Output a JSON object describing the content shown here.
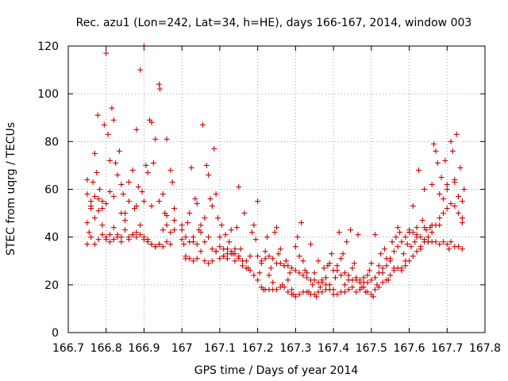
{
  "chart_data": {
    "type": "scatter",
    "title": "Rec. azu1 (Lon=242, Lat=34, h=HE), days 166-167, 2014, window 003",
    "xlabel": "GPS time / Days of year 2014",
    "ylabel": "STEC from uqrg / TECUs",
    "xlim": [
      166.7,
      167.8
    ],
    "ylim": [
      0,
      120
    ],
    "xticks": [
      "166.7",
      "166.8",
      "166.9",
      "167",
      "167.1",
      "167.2",
      "167.3",
      "167.4",
      "167.5",
      "167.6",
      "167.7",
      "167.8"
    ],
    "yticks": [
      "0",
      "20",
      "40",
      "60",
      "80",
      "100",
      "120"
    ],
    "grid": true,
    "marker": "plus",
    "color": "#cc0000",
    "points": [
      [
        166.75,
        37
      ],
      [
        166.755,
        42
      ],
      [
        166.76,
        52
      ],
      [
        166.765,
        63
      ],
      [
        166.77,
        75
      ],
      [
        166.775,
        67
      ],
      [
        166.778,
        91
      ],
      [
        166.783,
        60
      ],
      [
        166.79,
        55
      ],
      [
        166.795,
        87
      ],
      [
        166.8,
        117
      ],
      [
        166.805,
        83
      ],
      [
        166.81,
        72
      ],
      [
        166.815,
        94
      ],
      [
        166.82,
        89
      ],
      [
        166.825,
        71
      ],
      [
        166.83,
        66
      ],
      [
        166.835,
        76
      ],
      [
        166.84,
        62
      ],
      [
        166.845,
        58
      ],
      [
        166.85,
        50
      ],
      [
        166.86,
        63
      ],
      [
        166.87,
        68
      ],
      [
        166.875,
        52
      ],
      [
        166.88,
        85
      ],
      [
        166.885,
        61
      ],
      [
        166.89,
        110
      ],
      [
        166.895,
        59
      ],
      [
        166.9,
        120
      ],
      [
        166.905,
        70
      ],
      [
        166.91,
        67
      ],
      [
        166.915,
        89
      ],
      [
        166.92,
        88
      ],
      [
        166.925,
        71
      ],
      [
        166.93,
        81
      ],
      [
        166.94,
        104
      ],
      [
        166.942,
        102
      ],
      [
        166.95,
        58
      ],
      [
        166.955,
        50
      ],
      [
        166.96,
        81
      ],
      [
        166.97,
        68
      ],
      [
        166.975,
        63
      ],
      [
        166.98,
        52
      ],
      [
        166.75,
        58
      ],
      [
        166.76,
        55
      ],
      [
        166.77,
        48
      ],
      [
        166.78,
        51
      ],
      [
        166.79,
        45
      ],
      [
        166.8,
        40
      ],
      [
        166.81,
        38
      ],
      [
        166.82,
        44
      ],
      [
        166.83,
        40
      ],
      [
        166.84,
        38
      ],
      [
        166.85,
        43
      ],
      [
        166.86,
        39
      ],
      [
        166.87,
        41
      ],
      [
        166.88,
        40
      ],
      [
        166.89,
        45
      ],
      [
        166.9,
        39
      ],
      [
        166.91,
        38
      ],
      [
        166.92,
        37
      ],
      [
        166.93,
        36
      ],
      [
        166.94,
        37
      ],
      [
        166.95,
        43
      ],
      [
        166.96,
        45
      ],
      [
        166.97,
        42
      ],
      [
        166.98,
        43
      ],
      [
        166.75,
        46
      ],
      [
        166.76,
        40
      ],
      [
        166.77,
        37
      ],
      [
        166.78,
        39
      ],
      [
        166.79,
        41
      ],
      [
        166.8,
        39
      ],
      [
        166.81,
        41
      ],
      [
        166.82,
        39
      ],
      [
        166.83,
        41
      ],
      [
        166.84,
        40
      ],
      [
        166.85,
        47
      ],
      [
        166.86,
        40
      ],
      [
        166.87,
        41
      ],
      [
        166.88,
        42
      ],
      [
        166.89,
        41
      ],
      [
        166.9,
        40
      ],
      [
        166.91,
        39
      ],
      [
        166.92,
        37
      ],
      [
        166.93,
        36
      ],
      [
        166.94,
        37
      ],
      [
        166.95,
        36
      ],
      [
        166.96,
        38
      ],
      [
        166.97,
        37
      ],
      [
        166.75,
        64
      ],
      [
        166.76,
        53
      ],
      [
        166.77,
        57
      ],
      [
        166.78,
        56
      ],
      [
        166.79,
        52
      ],
      [
        166.8,
        54
      ],
      [
        166.81,
        59
      ],
      [
        166.82,
        57
      ],
      [
        166.84,
        50
      ],
      [
        166.86,
        55
      ],
      [
        166.88,
        53
      ],
      [
        166.9,
        55
      ],
      [
        166.92,
        53
      ],
      [
        166.94,
        55
      ],
      [
        166.96,
        49
      ],
      [
        166.98,
        47
      ],
      [
        167.0,
        43
      ],
      [
        167.005,
        37
      ],
      [
        167.01,
        32
      ],
      [
        167.015,
        46
      ],
      [
        167.02,
        50
      ],
      [
        167.025,
        69
      ],
      [
        167.03,
        40
      ],
      [
        167.035,
        56
      ],
      [
        167.04,
        54
      ],
      [
        167.045,
        43
      ],
      [
        167.05,
        45
      ],
      [
        167.055,
        87
      ],
      [
        167.06,
        48
      ],
      [
        167.065,
        70
      ],
      [
        167.07,
        66
      ],
      [
        167.075,
        56
      ],
      [
        167.08,
        53
      ],
      [
        167.085,
        77
      ],
      [
        167.09,
        58
      ],
      [
        167.095,
        48
      ],
      [
        167.1,
        40
      ],
      [
        167.105,
        45
      ],
      [
        167.11,
        32
      ],
      [
        167.115,
        41
      ],
      [
        167.12,
        35
      ],
      [
        167.125,
        38
      ],
      [
        167.13,
        43
      ],
      [
        167.135,
        33
      ],
      [
        167.14,
        33
      ],
      [
        167.145,
        44
      ],
      [
        167.15,
        61
      ],
      [
        167.155,
        35
      ],
      [
        167.16,
        30
      ],
      [
        167.165,
        50
      ],
      [
        167.17,
        30
      ],
      [
        167.175,
        27
      ],
      [
        167.18,
        32
      ],
      [
        167.185,
        42
      ],
      [
        167.19,
        45
      ],
      [
        167.195,
        39
      ],
      [
        167.0,
        39
      ],
      [
        167.01,
        31
      ],
      [
        167.02,
        31
      ],
      [
        167.03,
        30
      ],
      [
        167.04,
        31
      ],
      [
        167.05,
        34
      ],
      [
        167.06,
        30
      ],
      [
        167.07,
        29
      ],
      [
        167.08,
        30
      ],
      [
        167.09,
        34
      ],
      [
        167.1,
        31
      ],
      [
        167.11,
        32
      ],
      [
        167.12,
        31
      ],
      [
        167.13,
        33
      ],
      [
        167.14,
        30
      ],
      [
        167.15,
        31
      ],
      [
        167.16,
        28
      ],
      [
        167.17,
        27
      ],
      [
        167.18,
        26
      ],
      [
        167.19,
        24
      ],
      [
        167.0,
        45
      ],
      [
        167.01,
        40
      ],
      [
        167.02,
        38
      ],
      [
        167.03,
        38
      ],
      [
        167.04,
        37
      ],
      [
        167.05,
        42
      ],
      [
        167.06,
        38
      ],
      [
        167.07,
        40
      ],
      [
        167.08,
        35
      ],
      [
        167.09,
        34
      ],
      [
        167.1,
        36
      ],
      [
        167.11,
        35
      ],
      [
        167.12,
        33
      ],
      [
        167.13,
        34
      ],
      [
        167.14,
        35
      ],
      [
        167.15,
        32
      ],
      [
        167.2,
        55
      ],
      [
        167.205,
        25
      ],
      [
        167.21,
        29
      ],
      [
        167.215,
        18
      ],
      [
        167.22,
        31
      ],
      [
        167.225,
        40
      ],
      [
        167.23,
        24
      ],
      [
        167.235,
        27
      ],
      [
        167.24,
        21
      ],
      [
        167.245,
        42
      ],
      [
        167.25,
        44
      ],
      [
        167.255,
        33
      ],
      [
        167.26,
        35
      ],
      [
        167.265,
        20
      ],
      [
        167.27,
        28
      ],
      [
        167.275,
        30
      ],
      [
        167.28,
        22
      ],
      [
        167.285,
        25
      ],
      [
        167.29,
        18
      ],
      [
        167.295,
        16
      ],
      [
        167.3,
        36
      ],
      [
        167.305,
        40
      ],
      [
        167.31,
        32
      ],
      [
        167.315,
        46
      ],
      [
        167.32,
        30
      ],
      [
        167.325,
        26
      ],
      [
        167.33,
        25
      ],
      [
        167.335,
        17
      ],
      [
        167.34,
        37
      ],
      [
        167.345,
        20
      ],
      [
        167.35,
        25
      ],
      [
        167.355,
        15
      ],
      [
        167.36,
        30
      ],
      [
        167.365,
        19
      ],
      [
        167.37,
        22
      ],
      [
        167.375,
        27
      ],
      [
        167.38,
        23
      ],
      [
        167.385,
        28
      ],
      [
        167.39,
        29
      ],
      [
        167.395,
        33
      ],
      [
        167.2,
        22
      ],
      [
        167.21,
        19
      ],
      [
        167.22,
        18
      ],
      [
        167.23,
        18
      ],
      [
        167.24,
        18
      ],
      [
        167.25,
        18
      ],
      [
        167.26,
        19
      ],
      [
        167.27,
        19
      ],
      [
        167.28,
        17
      ],
      [
        167.29,
        16
      ],
      [
        167.3,
        15
      ],
      [
        167.31,
        16
      ],
      [
        167.32,
        17
      ],
      [
        167.33,
        17
      ],
      [
        167.34,
        16
      ],
      [
        167.35,
        16
      ],
      [
        167.36,
        17
      ],
      [
        167.37,
        17
      ],
      [
        167.38,
        18
      ],
      [
        167.39,
        18
      ],
      [
        167.2,
        32
      ],
      [
        167.21,
        30
      ],
      [
        167.22,
        34
      ],
      [
        167.23,
        32
      ],
      [
        167.24,
        31
      ],
      [
        167.25,
        29
      ],
      [
        167.26,
        29
      ],
      [
        167.27,
        28
      ],
      [
        167.28,
        28
      ],
      [
        167.29,
        27
      ],
      [
        167.3,
        26
      ],
      [
        167.31,
        25
      ],
      [
        167.32,
        24
      ],
      [
        167.33,
        23
      ],
      [
        167.34,
        22
      ],
      [
        167.35,
        22
      ],
      [
        167.36,
        21
      ],
      [
        167.37,
        21
      ],
      [
        167.38,
        20
      ],
      [
        167.39,
        20
      ],
      [
        167.4,
        18
      ],
      [
        167.405,
        23
      ],
      [
        167.41,
        26
      ],
      [
        167.415,
        42
      ],
      [
        167.42,
        31
      ],
      [
        167.425,
        33
      ],
      [
        167.43,
        20
      ],
      [
        167.435,
        38
      ],
      [
        167.44,
        24
      ],
      [
        167.445,
        43
      ],
      [
        167.45,
        27
      ],
      [
        167.455,
        29
      ],
      [
        167.46,
        22
      ],
      [
        167.465,
        41
      ],
      [
        167.47,
        21
      ],
      [
        167.475,
        19
      ],
      [
        167.48,
        23
      ],
      [
        167.485,
        17
      ],
      [
        167.49,
        24
      ],
      [
        167.495,
        26
      ],
      [
        167.5,
        29
      ],
      [
        167.505,
        15
      ],
      [
        167.51,
        41
      ],
      [
        167.515,
        20
      ],
      [
        167.52,
        28
      ],
      [
        167.525,
        33
      ],
      [
        167.53,
        25
      ],
      [
        167.535,
        35
      ],
      [
        167.54,
        31
      ],
      [
        167.545,
        22
      ],
      [
        167.55,
        30
      ],
      [
        167.555,
        38
      ],
      [
        167.56,
        27
      ],
      [
        167.565,
        40
      ],
      [
        167.57,
        44
      ],
      [
        167.575,
        42
      ],
      [
        167.58,
        26
      ],
      [
        167.585,
        33
      ],
      [
        167.59,
        30
      ],
      [
        167.595,
        37
      ],
      [
        167.4,
        16
      ],
      [
        167.41,
        16
      ],
      [
        167.42,
        17
      ],
      [
        167.43,
        17
      ],
      [
        167.44,
        18
      ],
      [
        167.45,
        19
      ],
      [
        167.46,
        17
      ],
      [
        167.47,
        18
      ],
      [
        167.48,
        19
      ],
      [
        167.49,
        17
      ],
      [
        167.5,
        16
      ],
      [
        167.51,
        18
      ],
      [
        167.52,
        19
      ],
      [
        167.53,
        21
      ],
      [
        167.54,
        22
      ],
      [
        167.55,
        24
      ],
      [
        167.56,
        26
      ],
      [
        167.57,
        27
      ],
      [
        167.58,
        27
      ],
      [
        167.59,
        28
      ],
      [
        167.4,
        26
      ],
      [
        167.41,
        28
      ],
      [
        167.42,
        24
      ],
      [
        167.43,
        25
      ],
      [
        167.44,
        22
      ],
      [
        167.45,
        22
      ],
      [
        167.46,
        23
      ],
      [
        167.47,
        22
      ],
      [
        167.48,
        21
      ],
      [
        167.49,
        21
      ],
      [
        167.5,
        22
      ],
      [
        167.51,
        23
      ],
      [
        167.52,
        25
      ],
      [
        167.53,
        27
      ],
      [
        167.54,
        28
      ],
      [
        167.55,
        31
      ],
      [
        167.56,
        34
      ],
      [
        167.57,
        36
      ],
      [
        167.58,
        38
      ],
      [
        167.59,
        40
      ],
      [
        167.6,
        42
      ],
      [
        167.605,
        36
      ],
      [
        167.61,
        53
      ],
      [
        167.615,
        38
      ],
      [
        167.62,
        40
      ],
      [
        167.625,
        68
      ],
      [
        167.63,
        35
      ],
      [
        167.635,
        47
      ],
      [
        167.64,
        60
      ],
      [
        167.645,
        43
      ],
      [
        167.65,
        38
      ],
      [
        167.655,
        44
      ],
      [
        167.66,
        62
      ],
      [
        167.665,
        79
      ],
      [
        167.67,
        76
      ],
      [
        167.675,
        71
      ],
      [
        167.68,
        45
      ],
      [
        167.685,
        65
      ],
      [
        167.69,
        56
      ],
      [
        167.695,
        72
      ],
      [
        167.7,
        60
      ],
      [
        167.705,
        35
      ],
      [
        167.71,
        80
      ],
      [
        167.715,
        76
      ],
      [
        167.72,
        63
      ],
      [
        167.725,
        83
      ],
      [
        167.73,
        57
      ],
      [
        167.735,
        69
      ],
      [
        167.74,
        46
      ],
      [
        167.745,
        60
      ],
      [
        167.6,
        30
      ],
      [
        167.61,
        32
      ],
      [
        167.62,
        34
      ],
      [
        167.63,
        36
      ],
      [
        167.64,
        38
      ],
      [
        167.65,
        40
      ],
      [
        167.66,
        42
      ],
      [
        167.67,
        45
      ],
      [
        167.68,
        48
      ],
      [
        167.69,
        50
      ],
      [
        167.7,
        52
      ],
      [
        167.71,
        54
      ],
      [
        167.72,
        53
      ],
      [
        167.73,
        50
      ],
      [
        167.74,
        48
      ],
      [
        167.6,
        42
      ],
      [
        167.61,
        42
      ],
      [
        167.62,
        41
      ],
      [
        167.63,
        40
      ],
      [
        167.64,
        39
      ],
      [
        167.65,
        38
      ],
      [
        167.66,
        38
      ],
      [
        167.67,
        38
      ],
      [
        167.68,
        37
      ],
      [
        167.69,
        38
      ],
      [
        167.7,
        37
      ],
      [
        167.71,
        38
      ],
      [
        167.72,
        36
      ],
      [
        167.73,
        36
      ],
      [
        167.74,
        35
      ],
      [
        167.6,
        43
      ],
      [
        167.62,
        44
      ],
      [
        167.64,
        44
      ],
      [
        167.66,
        45
      ],
      [
        167.68,
        58
      ],
      [
        167.7,
        62
      ],
      [
        167.72,
        64
      ],
      [
        167.74,
        55
      ]
    ]
  }
}
